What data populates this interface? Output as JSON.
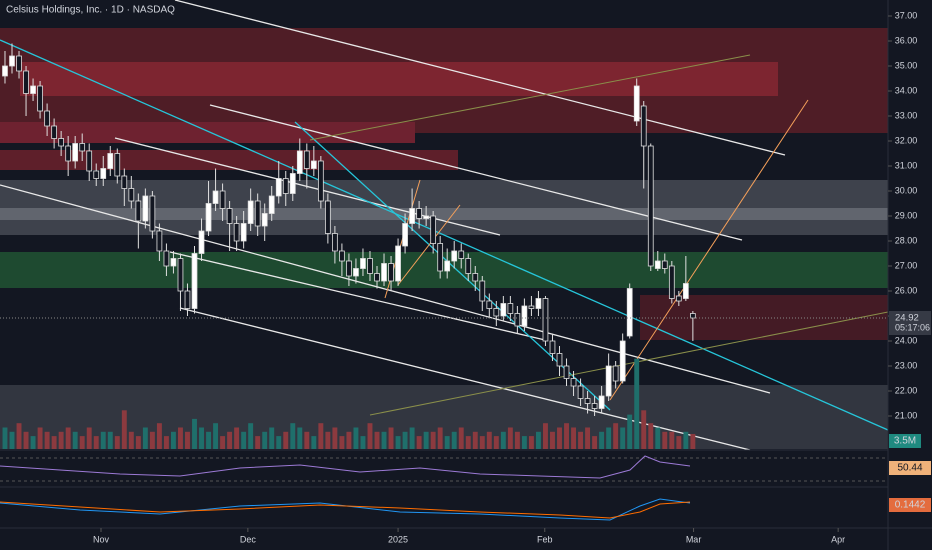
{
  "chart_data": {
    "type": "candlestick",
    "title": "Celsius Holdings, Inc. · 1D · NASDAQ",
    "up_color": "#ffffff",
    "down_color": "#131722",
    "volume_up_color": "#1f6f6b",
    "volume_down_color": "#8c3a3f",
    "xlim": [
      -0.71,
      125.8
    ],
    "xticks": [
      {
        "value": 13.68,
        "label": "Nov"
      },
      {
        "value": 34.6,
        "label": "Dec"
      },
      {
        "value": 56.0,
        "label": "2025"
      },
      {
        "value": 76.9,
        "label": "Feb"
      },
      {
        "value": 98.1,
        "label": "Mar"
      },
      {
        "value": 118.7,
        "label": "Apr"
      }
    ],
    "ylim": [
      19.68,
      37.64
    ],
    "yticks": [
      {
        "value": 37,
        "label": "37.00"
      },
      {
        "value": 36,
        "label": "36.00"
      },
      {
        "value": 35,
        "label": "35.00"
      },
      {
        "value": 34,
        "label": "34.00"
      },
      {
        "value": 33,
        "label": "33.00"
      },
      {
        "value": 32,
        "label": "32.00"
      },
      {
        "value": 31,
        "label": "31.00"
      },
      {
        "value": 30,
        "label": "30.00"
      },
      {
        "value": 29,
        "label": "29.00"
      },
      {
        "value": 28,
        "label": "28.00"
      },
      {
        "value": 27,
        "label": "27.00"
      },
      {
        "value": 26,
        "label": "26.00"
      },
      {
        "value": 25,
        "label": "25.00"
      },
      {
        "value": 24,
        "label": "24.00"
      },
      {
        "value": 23,
        "label": "23.00"
      },
      {
        "value": 22,
        "label": "22.00"
      },
      {
        "value": 21,
        "label": "21.00"
      }
    ],
    "open": [
      34.6,
      35.0,
      35.4,
      34.8,
      33.9,
      34.2,
      33.2,
      32.6,
      32.1,
      31.8,
      31.2,
      31.9,
      31.6,
      30.8,
      30.5,
      30.9,
      31.5,
      30.6,
      30.1,
      29.6,
      28.8,
      29.8,
      28.4,
      27.6,
      27.0,
      27.3,
      26.0,
      25.3,
      27.5,
      28.4,
      29.5,
      30.0,
      29.3,
      28.7,
      28.0,
      28.7,
      29.6,
      28.6,
      29.1,
      29.8,
      30.5,
      29.9,
      30.7,
      31.6,
      30.9,
      31.2,
      29.6,
      28.3,
      27.6,
      27.2,
      26.6,
      26.9,
      27.3,
      26.7,
      26.4,
      27.1,
      26.4,
      27.8,
      28.7,
      29.3,
      28.9,
      29.0,
      27.9,
      26.8,
      27.2,
      27.6,
      27.3,
      26.7,
      26.4,
      25.6,
      25.3,
      25.0,
      25.5,
      25.1,
      24.6,
      25.4,
      25.3,
      25.7,
      24.0,
      23.5,
      23.0,
      22.5,
      22.2,
      21.7,
      21.5,
      21.3,
      21.8,
      23.0,
      22.4,
      24.2,
      32.8,
      33.4,
      31.8,
      26.9,
      27.2,
      27.0,
      25.8,
      25.7,
      25.1
    ],
    "high": [
      35.6,
      35.9,
      35.6,
      35.0,
      34.5,
      34.4,
      33.5,
      32.9,
      32.4,
      32.2,
      32.2,
      32.3,
      31.9,
      31.1,
      31.4,
      31.8,
      31.7,
      30.9,
      30.6,
      29.9,
      30.1,
      30.0,
      28.7,
      27.9,
      27.6,
      27.5,
      26.3,
      27.8,
      28.9,
      30.4,
      30.9,
      30.3,
      29.6,
      29.0,
      29.2,
      30.1,
      29.9,
      29.5,
      30.2,
      31.2,
      30.8,
      31.0,
      32.1,
      31.9,
      31.8,
      31.4,
      29.9,
      28.6,
      27.9,
      27.5,
      27.3,
      27.7,
      27.6,
      27.0,
      27.5,
      27.4,
      28.1,
      29.1,
      30.1,
      29.6,
      29.4,
      29.2,
      28.2,
      27.7,
      28.0,
      27.9,
      27.5,
      27.0,
      26.6,
      25.9,
      25.6,
      25.8,
      25.8,
      25.4,
      25.7,
      25.8,
      26.0,
      25.8,
      24.3,
      23.8,
      23.3,
      22.8,
      22.5,
      22.0,
      21.8,
      22.2,
      23.5,
      23.2,
      24.3,
      26.3,
      34.5,
      33.6,
      31.9,
      27.6,
      27.5,
      27.2,
      26.0,
      27.4,
      25.2
    ],
    "low": [
      34.3,
      34.7,
      34.5,
      33.0,
      33.6,
      32.9,
      32.2,
      31.7,
      31.4,
      30.6,
      30.9,
      31.2,
      30.4,
      30.2,
      30.2,
      30.6,
      30.3,
      29.4,
      29.3,
      27.7,
      28.5,
      28.1,
      27.2,
      26.6,
      26.7,
      25.2,
      25.0,
      25.1,
      27.2,
      28.2,
      29.2,
      28.8,
      27.6,
      27.6,
      27.7,
      28.4,
      28.2,
      28.0,
      28.8,
      29.5,
      29.4,
      29.6,
      30.4,
      30.1,
      30.6,
      29.3,
      27.9,
      27.1,
      26.6,
      26.2,
      26.3,
      26.6,
      26.4,
      26.1,
      26.2,
      26.0,
      26.2,
      27.5,
      28.4,
      28.5,
      28.6,
      27.5,
      26.5,
      26.5,
      26.9,
      26.9,
      26.4,
      26.0,
      25.2,
      24.9,
      24.6,
      24.8,
      24.8,
      24.3,
      24.4,
      25.0,
      25.0,
      23.8,
      23.2,
      22.6,
      22.2,
      21.8,
      21.4,
      21.1,
      21.0,
      21.1,
      21.6,
      22.1,
      22.3,
      24.1,
      32.6,
      30.1,
      26.8,
      26.8,
      26.7,
      25.5,
      25.4,
      25.6,
      24.0
    ],
    "close": [
      35.0,
      35.4,
      34.8,
      33.9,
      34.2,
      33.2,
      32.6,
      32.1,
      31.8,
      31.2,
      31.9,
      31.6,
      30.8,
      30.5,
      30.9,
      31.5,
      30.6,
      30.1,
      29.6,
      28.8,
      29.8,
      28.4,
      27.6,
      27.0,
      27.3,
      26.0,
      25.3,
      27.5,
      28.4,
      29.5,
      30.0,
      29.3,
      28.7,
      28.0,
      28.7,
      29.6,
      28.6,
      29.1,
      29.8,
      30.5,
      29.9,
      30.7,
      31.6,
      30.9,
      31.2,
      29.6,
      28.3,
      27.6,
      27.2,
      26.6,
      26.9,
      27.3,
      26.7,
      26.4,
      27.1,
      26.4,
      27.8,
      28.7,
      29.3,
      28.9,
      29.0,
      27.9,
      26.8,
      27.2,
      27.6,
      27.3,
      26.7,
      26.4,
      25.6,
      25.3,
      25.0,
      25.5,
      25.1,
      24.6,
      25.4,
      25.3,
      25.7,
      24.0,
      23.5,
      23.0,
      22.5,
      22.2,
      21.7,
      21.5,
      21.3,
      21.8,
      23.0,
      22.4,
      24.0,
      26.1,
      34.2,
      31.8,
      27.0,
      27.2,
      26.9,
      25.7,
      25.6,
      26.3,
      24.92
    ],
    "volume": [
      5,
      4,
      6,
      4,
      3,
      5,
      4,
      3,
      4,
      5,
      4,
      3,
      5,
      3,
      4,
      4,
      3,
      9,
      4,
      3,
      5,
      4,
      6,
      3,
      4,
      5,
      4,
      7,
      5,
      4,
      6,
      3,
      4,
      5,
      4,
      6,
      3,
      4,
      5,
      3,
      4,
      6,
      5,
      4,
      3,
      6,
      4,
      5,
      3,
      4,
      5,
      3,
      6,
      4,
      4,
      5,
      3,
      4,
      5,
      3,
      4,
      4,
      5,
      3,
      4,
      5,
      3,
      4,
      3,
      4,
      3,
      4,
      5,
      4,
      3,
      3,
      4,
      6,
      4,
      5,
      6,
      5,
      4,
      5,
      3,
      4,
      5,
      6,
      5,
      8,
      21,
      9,
      6,
      5,
      4,
      4,
      3,
      4,
      3.5
    ],
    "volume_label": "3.5M",
    "last_price": 24.92,
    "countdown": "05:17:06",
    "rsi_label": "50.44",
    "macd_label": "0.1442"
  }
}
